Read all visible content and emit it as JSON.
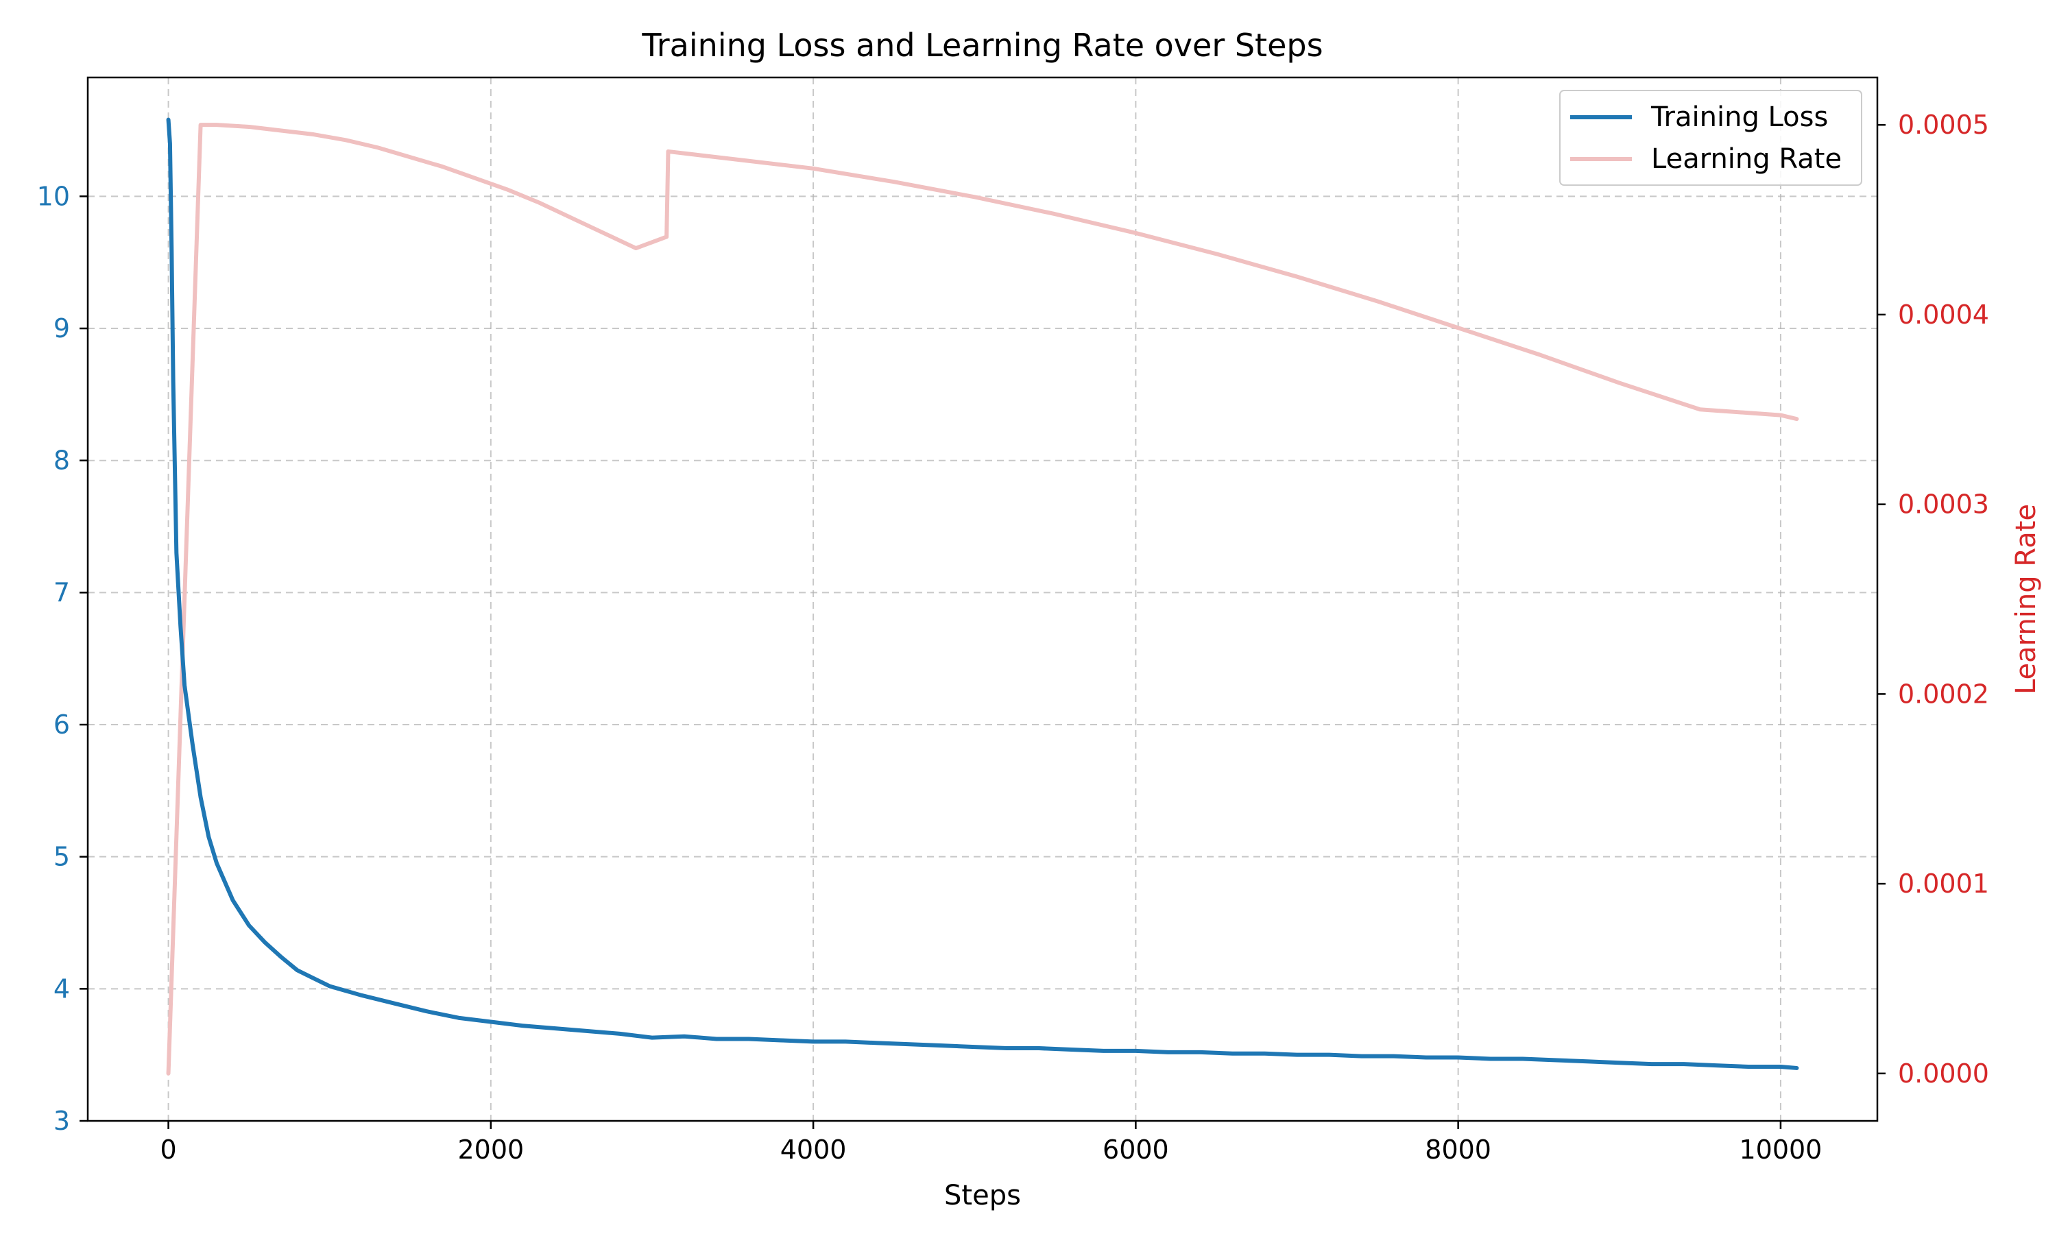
{
  "chart_data": {
    "type": "line",
    "title": "Training Loss and Learning Rate over Steps",
    "xlabel": "Steps",
    "ylabel": "",
    "y2label": "Learning Rate",
    "xlim": [
      -500,
      10600
    ],
    "ylim": [
      3,
      10.9
    ],
    "y2lim": [
      -2.5e-05,
      0.000525
    ],
    "xticks": [
      0,
      2000,
      4000,
      6000,
      8000,
      10000
    ],
    "xtick_labels": [
      "0",
      "2000",
      "4000",
      "6000",
      "8000",
      "10000"
    ],
    "yticks": [
      3,
      4,
      5,
      6,
      7,
      8,
      9,
      10
    ],
    "ytick_labels": [
      "3",
      "4",
      "5",
      "6",
      "7",
      "8",
      "9",
      "10"
    ],
    "y2ticks": [
      0,
      0.0001,
      0.0002,
      0.0003,
      0.0004,
      0.0005
    ],
    "y2tick_labels": [
      "0.0000",
      "0.0001",
      "0.0002",
      "0.0003",
      "0.0004",
      "0.0005"
    ],
    "grid": true,
    "legend_position": "top-right",
    "colors": {
      "loss": "#1f77b4",
      "lr": "#f0c0c0",
      "right_axis": "#d62728",
      "left_ticks": "#1f77b4"
    },
    "series": [
      {
        "name": "Training Loss",
        "axis": "left",
        "x": [
          0,
          10,
          20,
          30,
          50,
          75,
          100,
          150,
          200,
          250,
          300,
          400,
          500,
          600,
          700,
          800,
          900,
          1000,
          1200,
          1400,
          1600,
          1800,
          2000,
          2200,
          2400,
          2600,
          2800,
          3000,
          3200,
          3400,
          3600,
          3800,
          4000,
          4200,
          4400,
          4600,
          4800,
          5000,
          5200,
          5400,
          5600,
          5800,
          6000,
          6200,
          6400,
          6600,
          6800,
          7000,
          7200,
          7400,
          7600,
          7800,
          8000,
          8200,
          8400,
          8600,
          8800,
          9000,
          9200,
          9400,
          9600,
          9800,
          10000,
          10100
        ],
        "y": [
          10.58,
          10.4,
          9.6,
          8.6,
          7.3,
          6.75,
          6.3,
          5.85,
          5.45,
          5.15,
          4.95,
          4.67,
          4.48,
          4.35,
          4.24,
          4.14,
          4.08,
          4.02,
          3.95,
          3.89,
          3.83,
          3.78,
          3.75,
          3.72,
          3.7,
          3.68,
          3.66,
          3.63,
          3.64,
          3.62,
          3.62,
          3.61,
          3.6,
          3.6,
          3.59,
          3.58,
          3.57,
          3.56,
          3.55,
          3.55,
          3.54,
          3.53,
          3.53,
          3.52,
          3.52,
          3.51,
          3.51,
          3.5,
          3.5,
          3.49,
          3.49,
          3.48,
          3.48,
          3.47,
          3.47,
          3.46,
          3.45,
          3.44,
          3.43,
          3.43,
          3.42,
          3.41,
          3.41,
          3.4
        ]
      },
      {
        "name": "Learning Rate",
        "axis": "right",
        "x": [
          0,
          200,
          300,
          500,
          700,
          900,
          1100,
          1300,
          1500,
          1700,
          1900,
          2100,
          2300,
          2500,
          2700,
          2900,
          3090,
          3100,
          3300,
          3600,
          4000,
          4500,
          5000,
          5500,
          6000,
          6500,
          7000,
          7500,
          8000,
          8500,
          9000,
          9500,
          10000,
          10100
        ],
        "y": [
          0.0,
          0.0005,
          0.0005,
          0.000499,
          0.000497,
          0.000495,
          0.000492,
          0.000488,
          0.000483,
          0.000478,
          0.000472,
          0.000466,
          0.000459,
          0.000451,
          0.000443,
          0.000435,
          0.000441,
          0.000486,
          0.000484,
          0.000481,
          0.000477,
          0.00047,
          0.000462,
          0.000453,
          0.000443,
          0.000432,
          0.00042,
          0.000407,
          0.000393,
          0.000379,
          0.000364,
          0.00035,
          0.000347,
          0.000345
        ]
      }
    ]
  }
}
